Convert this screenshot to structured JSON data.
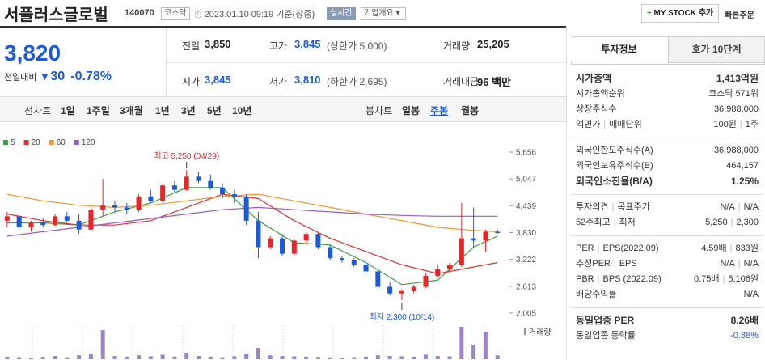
{
  "header": {
    "name": "서플러스글로벌",
    "code": "140070",
    "market": "코스닥",
    "datetime": "2023.01.10 09:19",
    "basis": "기준(장중)",
    "realtime": "실시간",
    "company_info": "기업개요",
    "my_stock": "MY STOCK 추가",
    "quick_order": "빠른주문"
  },
  "quote": {
    "price": "3,820",
    "change_label": "전일대비",
    "change": "30",
    "change_rate": "-0.78%"
  },
  "stats": [
    [
      {
        "label": "전일",
        "value": "3,850"
      },
      {
        "label": "고가",
        "value": "3,845",
        "note": "(상한가 5,000)"
      },
      {
        "label": "거래량",
        "value": "25,205"
      }
    ],
    [
      {
        "label": "시가",
        "value": "3,845"
      },
      {
        "label": "저가",
        "value": "3,810",
        "note": "(하한가 2,695)"
      },
      {
        "label": "거래대금",
        "value": "96 백만"
      }
    ]
  ],
  "period_tabs": {
    "line_label": "선차트",
    "line": [
      "1일",
      "1주일",
      "3개월",
      "1년",
      "3년",
      "5년",
      "10년"
    ],
    "candle_label": "봉차트",
    "candle": [
      "일봉",
      "주봉",
      "월봉"
    ],
    "active_candle": 1
  },
  "info_tabs": [
    "투자정보",
    "호가 10단계"
  ],
  "info": [
    [
      {
        "labels": [
          "시가총액"
        ],
        "values": [
          "1,413억원"
        ],
        "strong": true
      },
      {
        "labels": [
          "시가총액순위"
        ],
        "values": [
          "코스닥 571위"
        ]
      },
      {
        "labels": [
          "상장주식수"
        ],
        "values": [
          "36,988,000"
        ]
      },
      {
        "labels": [
          "액면가",
          "매매단위"
        ],
        "values": [
          "100원",
          "1주"
        ]
      }
    ],
    [
      {
        "labels": [
          "외국인한도주식수(A)"
        ],
        "values": [
          "36,988,000"
        ]
      },
      {
        "labels": [
          "외국인보유주식수(B)"
        ],
        "values": [
          "464,157"
        ]
      },
      {
        "labels": [
          "외국인소진율(B/A)"
        ],
        "values": [
          "1.25%"
        ],
        "strong": true
      }
    ],
    [
      {
        "labels": [
          "투자의견",
          "목표주가"
        ],
        "values": [
          "N/A",
          "N/A"
        ]
      },
      {
        "labels": [
          "52주최고",
          "최저"
        ],
        "values": [
          "5,250",
          "2,300"
        ]
      }
    ],
    [
      {
        "labels": [
          "PER",
          "EPS(2022.09)"
        ],
        "values": [
          "4.59배",
          "833원"
        ]
      },
      {
        "labels": [
          "추정PER",
          "EPS"
        ],
        "values": [
          "N/A",
          "N/A"
        ]
      },
      {
        "labels": [
          "PBR",
          "BPS (2022.09)"
        ],
        "values": [
          "0.75배",
          "5,106원"
        ]
      },
      {
        "labels": [
          "배당수익률"
        ],
        "values": [
          "N/A"
        ]
      }
    ],
    [
      {
        "labels": [
          "동일업종 PER"
        ],
        "values": [
          "8.26배"
        ],
        "strong": true
      },
      {
        "labels": [
          "동일업종 등락률"
        ],
        "values": [
          "-0.88%"
        ],
        "color": "#1d5bd6"
      }
    ]
  ],
  "chart": {
    "type": "candlestick",
    "up_color": "#e8262a",
    "down_color": "#1d5bd6",
    "xlim": [
      -0.6,
      42
    ],
    "ylim": [
      1803,
      5839
    ],
    "yticks": [
      {
        "value": 5656,
        "label": "5,656"
      },
      {
        "value": 5047,
        "label": "5,047"
      },
      {
        "value": 4439,
        "label": "4,439"
      },
      {
        "value": 3830,
        "label": "3,830"
      },
      {
        "value": 3222,
        "label": "3,222"
      },
      {
        "value": 2613,
        "label": "2,613"
      },
      {
        "value": 2005,
        "label": "2,005"
      }
    ],
    "candles": [
      {
        "o": 4100,
        "h": 4300,
        "l": 3950,
        "c": 4200
      },
      {
        "o": 4200,
        "h": 4250,
        "l": 3900,
        "c": 3950
      },
      {
        "o": 3950,
        "h": 4100,
        "l": 3850,
        "c": 4050
      },
      {
        "o": 4050,
        "h": 4150,
        "l": 3950,
        "c": 4000
      },
      {
        "o": 4000,
        "h": 4250,
        "l": 3980,
        "c": 4200
      },
      {
        "o": 4200,
        "h": 4300,
        "l": 4050,
        "c": 4100
      },
      {
        "o": 4100,
        "h": 4250,
        "l": 3800,
        "c": 3900
      },
      {
        "o": 3900,
        "h": 4400,
        "l": 3880,
        "c": 4350
      },
      {
        "o": 4350,
        "h": 5050,
        "l": 4200,
        "c": 4450
      },
      {
        "o": 4450,
        "h": 4550,
        "l": 4300,
        "c": 4400
      },
      {
        "o": 4400,
        "h": 4500,
        "l": 4250,
        "c": 4350
      },
      {
        "o": 4350,
        "h": 4700,
        "l": 4300,
        "c": 4650
      },
      {
        "o": 4650,
        "h": 4800,
        "l": 4500,
        "c": 4550
      },
      {
        "o": 4550,
        "h": 4950,
        "l": 4500,
        "c": 4900
      },
      {
        "o": 4900,
        "h": 5000,
        "l": 4750,
        "c": 4800
      },
      {
        "o": 4800,
        "h": 5250,
        "l": 4780,
        "c": 5100
      },
      {
        "o": 5100,
        "h": 5200,
        "l": 4950,
        "c": 5000
      },
      {
        "o": 5000,
        "h": 5150,
        "l": 4800,
        "c": 4850
      },
      {
        "o": 4850,
        "h": 4950,
        "l": 4600,
        "c": 4700
      },
      {
        "o": 4700,
        "h": 4800,
        "l": 4500,
        "c": 4650
      },
      {
        "o": 4650,
        "h": 4700,
        "l": 4000,
        "c": 4100
      },
      {
        "o": 4100,
        "h": 4300,
        "l": 3250,
        "c": 3500
      },
      {
        "o": 3500,
        "h": 3750,
        "l": 3450,
        "c": 3700
      },
      {
        "o": 3700,
        "h": 3800,
        "l": 3300,
        "c": 3350
      },
      {
        "o": 3350,
        "h": 3700,
        "l": 3300,
        "c": 3650
      },
      {
        "o": 3650,
        "h": 3850,
        "l": 3550,
        "c": 3800
      },
      {
        "o": 3800,
        "h": 3850,
        "l": 3450,
        "c": 3500
      },
      {
        "o": 3500,
        "h": 3550,
        "l": 3200,
        "c": 3250
      },
      {
        "o": 3250,
        "h": 3300,
        "l": 3150,
        "c": 3200
      },
      {
        "o": 3200,
        "h": 3250,
        "l": 3050,
        "c": 3100
      },
      {
        "o": 3100,
        "h": 3200,
        "l": 2900,
        "c": 2950
      },
      {
        "o": 2950,
        "h": 3000,
        "l": 2500,
        "c": 2600
      },
      {
        "o": 2600,
        "h": 2700,
        "l": 2400,
        "c": 2450
      },
      {
        "o": 2450,
        "h": 2550,
        "l": 2300,
        "c": 2500
      },
      {
        "o": 2500,
        "h": 2650,
        "l": 2450,
        "c": 2600
      },
      {
        "o": 2600,
        "h": 2900,
        "l": 2580,
        "c": 2850
      },
      {
        "o": 2850,
        "h": 3100,
        "l": 2800,
        "c": 3000
      },
      {
        "o": 3000,
        "h": 3150,
        "l": 2900,
        "c": 3100
      },
      {
        "o": 3100,
        "h": 4500,
        "l": 3050,
        "c": 3700
      },
      {
        "o": 3700,
        "h": 4400,
        "l": 3500,
        "c": 3650
      },
      {
        "o": 3650,
        "h": 3900,
        "l": 3400,
        "c": 3850
      },
      {
        "o": 3850,
        "h": 3900,
        "l": 3800,
        "c": 3820
      }
    ],
    "series": [
      {
        "name": "5",
        "color": "#3ca03c",
        "x": [
          0,
          3,
          6,
          9,
          12,
          15,
          18,
          21,
          24,
          27,
          30,
          33,
          36,
          39,
          41
        ],
        "values": [
          4050,
          4050,
          4000,
          4300,
          4500,
          4850,
          4850,
          4100,
          3600,
          3550,
          3150,
          2650,
          2750,
          3500,
          3750
        ]
      },
      {
        "name": "20",
        "color": "#e03030",
        "x": [
          0,
          3,
          6,
          9,
          12,
          15,
          18,
          21,
          24,
          27,
          30,
          33,
          36,
          39,
          41
        ],
        "values": [
          4250,
          4100,
          4000,
          4000,
          4100,
          4400,
          4700,
          4600,
          4100,
          3700,
          3400,
          3100,
          2900,
          3050,
          3150
        ]
      },
      {
        "name": "60",
        "color": "#f0962a",
        "x": [
          0,
          3,
          6,
          9,
          12,
          15,
          18,
          21,
          24,
          27,
          30,
          33,
          36,
          39,
          41
        ],
        "values": [
          4700,
          4550,
          4450,
          4400,
          4450,
          4550,
          4650,
          4700,
          4550,
          4400,
          4250,
          4100,
          3950,
          3880,
          3850
        ]
      },
      {
        "name": "120",
        "color": "#9a5cc0",
        "x": [
          0,
          3,
          6,
          9,
          12,
          15,
          18,
          21,
          24,
          27,
          30,
          33,
          36,
          39,
          41
        ],
        "values": [
          3750,
          3850,
          3950,
          4050,
          4150,
          4250,
          4350,
          4400,
          4350,
          4300,
          4250,
          4220,
          4200,
          4200,
          4200
        ]
      }
    ],
    "annotations": [
      {
        "text": "최고 5,250 (04/29)",
        "x": 15,
        "y": 5250
      },
      {
        "text": "최저 2,300 (10/14)",
        "x": 33,
        "y": 2300
      }
    ],
    "volume": {
      "label": "거래량",
      "color": "#9c84c8",
      "ylim": [
        0,
        100
      ],
      "values": [
        8,
        6,
        5,
        7,
        10,
        6,
        12,
        15,
        90,
        10,
        8,
        12,
        9,
        14,
        8,
        20,
        10,
        8,
        6,
        9,
        15,
        35,
        12,
        10,
        9,
        8,
        7,
        6,
        5,
        6,
        8,
        12,
        10,
        9,
        8,
        14,
        10,
        9,
        100,
        45,
        85,
        12
      ]
    }
  }
}
